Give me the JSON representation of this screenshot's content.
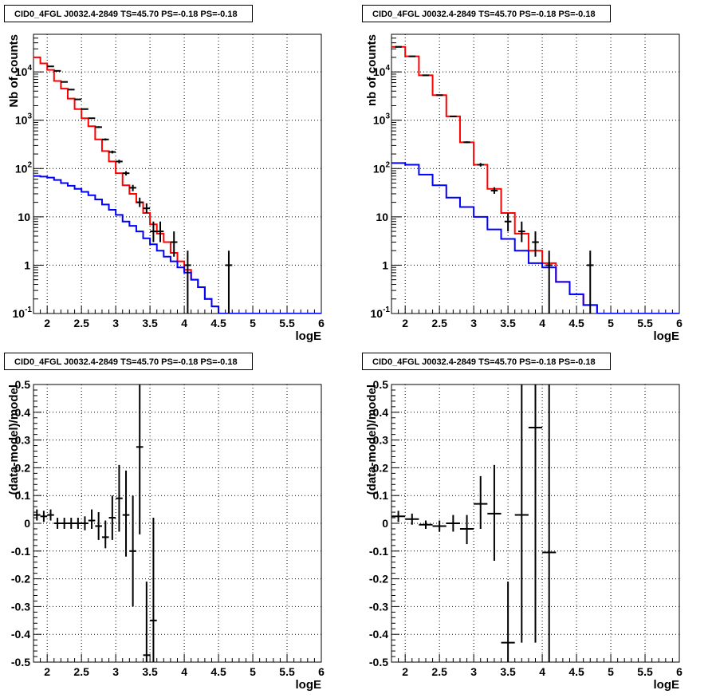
{
  "chart_data": [
    {
      "type": "line",
      "title": "CID0_4FGL J0032.4-2849 TS=45.70 PS=-0.18 PS=-0.18",
      "xlabel": "logE",
      "ylabel": "Nb of counts",
      "xlim": [
        1.8,
        6.0
      ],
      "ylim": [
        0.1,
        60000
      ],
      "yscale": "log",
      "grid": true,
      "xticks": [
        "2",
        "2.5",
        "3",
        "3.5",
        "4",
        "4.5",
        "5",
        "5.5",
        "6"
      ],
      "yticks": [
        "10^-1",
        "1",
        "10",
        "10^2",
        "10^3",
        "10^4"
      ],
      "bin_edges": [
        1.8,
        1.9,
        2.0,
        2.1,
        2.2,
        2.3,
        2.4,
        2.5,
        2.6,
        2.7,
        2.8,
        2.9,
        3.0,
        3.1,
        3.2,
        3.3,
        3.4,
        3.5,
        3.6,
        3.7,
        3.8,
        3.9,
        4.0,
        4.1,
        4.2,
        4.3,
        4.4,
        4.5,
        4.6,
        4.7,
        4.8,
        4.9,
        5.0,
        5.1,
        5.2,
        5.3,
        5.4,
        5.5,
        5.6,
        5.7,
        5.8,
        5.9,
        6.0
      ],
      "series": [
        {
          "color": "#ff0000",
          "style": "step",
          "values": [
            20000,
            15000,
            11000,
            6500,
            4500,
            2800,
            1700,
            1100,
            750,
            400,
            230,
            140,
            80,
            45,
            30,
            20,
            12,
            7,
            4.5,
            3,
            1.8,
            1.2,
            0.8,
            0.5,
            0.35,
            0.2,
            0.14,
            0.1,
            0.1,
            0.1,
            0.1,
            0.1,
            0.1,
            0.1,
            0.1,
            0.1,
            0.1,
            0.1,
            0.1,
            0.1,
            0.1,
            0.1
          ]
        },
        {
          "color": "#0000ff",
          "style": "step",
          "values": [
            70,
            68,
            65,
            58,
            50,
            44,
            38,
            33,
            28,
            23,
            18,
            14,
            11,
            8,
            6.5,
            5,
            3.6,
            2.7,
            2,
            1.5,
            1.2,
            0.9,
            0.7,
            0.5,
            0.35,
            0.2,
            0.14,
            0.1,
            0.1,
            0.1,
            0.1,
            0.1,
            0.1,
            0.1,
            0.1,
            0.1,
            0.1,
            0.1,
            0.1,
            0.1,
            0.1,
            0.1
          ]
        },
        {
          "color": "#000000",
          "style": "points",
          "x": [
            2.05,
            2.15,
            2.25,
            2.35,
            2.45,
            2.55,
            2.65,
            2.75,
            2.85,
            2.95,
            3.05,
            3.15,
            3.25,
            3.35,
            3.45,
            3.55,
            3.65,
            3.85,
            4.05,
            4.65
          ],
          "y": [
            13000,
            10500,
            6200,
            4300,
            2700,
            1700,
            1100,
            720,
            400,
            220,
            140,
            80,
            40,
            20,
            15,
            5,
            5,
            3,
            1,
            1
          ],
          "ylo": [
            12800,
            10300,
            6100,
            4200,
            2650,
            1650,
            1070,
            690,
            380,
            205,
            128,
            72,
            34,
            16,
            12,
            3,
            3,
            1.5,
            0.1,
            0.1
          ],
          "yhi": [
            13200,
            10700,
            6300,
            4400,
            2750,
            1750,
            1130,
            750,
            420,
            235,
            152,
            88,
            46,
            25,
            19,
            8,
            8,
            5,
            2,
            2
          ]
        }
      ]
    },
    {
      "type": "line",
      "title": "CID0_4FGL J0032.4-2849 TS=45.70 PS=-0.18 PS=-0.18",
      "xlabel": "logE",
      "ylabel": "nb of counts",
      "xlim": [
        1.8,
        6.0
      ],
      "ylim": [
        0.1,
        60000
      ],
      "yscale": "log",
      "grid": true,
      "xticks": [
        "2",
        "2.5",
        "3",
        "3.5",
        "4",
        "4.5",
        "5",
        "5.5",
        "6"
      ],
      "yticks": [
        "10^-1",
        "1",
        "10",
        "10^2",
        "10^3",
        "10^4"
      ],
      "bin_edges": [
        1.8,
        2.0,
        2.2,
        2.4,
        2.6,
        2.8,
        3.0,
        3.2,
        3.4,
        3.6,
        3.8,
        4.0,
        4.2,
        4.4,
        4.6,
        4.8,
        5.0,
        5.2,
        5.4,
        5.6,
        5.8,
        6.0
      ],
      "series": [
        {
          "color": "#ff0000",
          "style": "step",
          "values": [
            33000,
            21000,
            8500,
            3300,
            1200,
            350,
            120,
            38,
            12,
            4.5,
            2,
            1.1,
            0.45,
            0.25,
            0.15,
            0.1,
            0.1,
            0.1,
            0.1,
            0.1,
            0.1
          ]
        },
        {
          "color": "#0000ff",
          "style": "step",
          "values": [
            130,
            120,
            75,
            45,
            25,
            16,
            10,
            5.5,
            3.5,
            2,
            1.1,
            0.9,
            0.45,
            0.25,
            0.15,
            0.1,
            0.1,
            0.1,
            0.1,
            0.1,
            0.1
          ]
        },
        {
          "color": "#000000",
          "style": "points",
          "x": [
            1.9,
            2.1,
            2.3,
            2.5,
            2.7,
            2.9,
            3.1,
            3.3,
            3.5,
            3.7,
            3.9,
            4.1,
            4.7
          ],
          "y": [
            33000,
            21000,
            8500,
            3300,
            1200,
            350,
            120,
            35,
            8,
            5,
            3,
            1,
            1
          ],
          "ylo": [
            32700,
            20800,
            8400,
            3250,
            1170,
            335,
            110,
            30,
            5,
            3,
            1.5,
            0.1,
            0.1
          ],
          "yhi": [
            33300,
            21200,
            8600,
            3350,
            1230,
            365,
            130,
            41,
            12,
            8,
            5,
            2,
            2
          ]
        }
      ]
    },
    {
      "type": "scatter",
      "title": "CID0_4FGL J0032.4-2849 TS=45.70 PS=-0.18 PS=-0.18",
      "xlabel": "logE",
      "ylabel": "(data-model)/model",
      "xlim": [
        1.8,
        6.0
      ],
      "ylim": [
        -0.5,
        0.5
      ],
      "grid": true,
      "xticks": [
        "2",
        "2.5",
        "3",
        "3.5",
        "4",
        "4.5",
        "5",
        "5.5",
        "6"
      ],
      "yticks": [
        "-0.5",
        "-0.4",
        "-0.3",
        "-0.2",
        "-0.1",
        "0",
        "0.1",
        "0.2",
        "0.3",
        "0.4",
        "0.5"
      ],
      "series": [
        {
          "color": "#000000",
          "style": "points",
          "xerr": 0.05,
          "x": [
            1.85,
            1.95,
            2.05,
            2.15,
            2.25,
            2.35,
            2.45,
            2.55,
            2.65,
            2.75,
            2.85,
            2.95,
            3.05,
            3.15,
            3.25,
            3.35,
            3.45,
            3.55
          ],
          "y": [
            0.03,
            0.025,
            0.03,
            0.0,
            0.0,
            0.0,
            0.0,
            0.0,
            0.01,
            -0.01,
            -0.05,
            0.02,
            0.09,
            0.03,
            -0.1,
            0.275,
            -0.475,
            -0.35
          ],
          "ylo": [
            0.01,
            0.005,
            0.01,
            -0.02,
            -0.02,
            -0.02,
            -0.02,
            -0.025,
            -0.02,
            -0.06,
            -0.09,
            -0.06,
            -0.03,
            -0.12,
            -0.3,
            -0.04,
            -0.5,
            -0.5
          ],
          "yhi": [
            0.05,
            0.045,
            0.05,
            0.02,
            0.02,
            0.02,
            0.02,
            0.025,
            0.05,
            0.04,
            0.01,
            0.1,
            0.21,
            0.19,
            0.1,
            0.5,
            -0.21,
            0.02
          ]
        }
      ]
    },
    {
      "type": "scatter",
      "title": "CID0_4FGL J0032.4-2849 TS=45.70 PS=-0.18 PS=-0.18",
      "xlabel": "logE",
      "ylabel": "(data-model)/model",
      "xlim": [
        1.8,
        6.0
      ],
      "ylim": [
        -0.5,
        0.5
      ],
      "grid": true,
      "xticks": [
        "2",
        "2.5",
        "3",
        "3.5",
        "4",
        "4.5",
        "5",
        "5.5",
        "6"
      ],
      "yticks": [
        "-0.5",
        "-0.4",
        "-0.3",
        "-0.2",
        "-0.1",
        "0",
        "0.1",
        "0.2",
        "0.3",
        "0.4",
        "0.5"
      ],
      "series": [
        {
          "color": "#000000",
          "style": "points",
          "xerr": 0.1,
          "x": [
            1.9,
            2.1,
            2.3,
            2.5,
            2.7,
            2.9,
            3.1,
            3.3,
            3.5,
            3.7,
            3.9,
            4.1
          ],
          "y": [
            0.025,
            0.015,
            -0.005,
            -0.01,
            0.0,
            -0.02,
            0.07,
            0.035,
            -0.43,
            0.03,
            0.345,
            -0.105
          ],
          "ylo": [
            0.005,
            -0.005,
            -0.02,
            -0.03,
            -0.03,
            -0.075,
            -0.02,
            -0.135,
            -0.5,
            -0.43,
            -0.43,
            -0.5
          ],
          "yhi": [
            0.045,
            0.035,
            0.01,
            0.01,
            0.03,
            0.03,
            0.17,
            0.21,
            -0.21,
            0.5,
            0.5,
            0.5
          ]
        }
      ]
    }
  ]
}
